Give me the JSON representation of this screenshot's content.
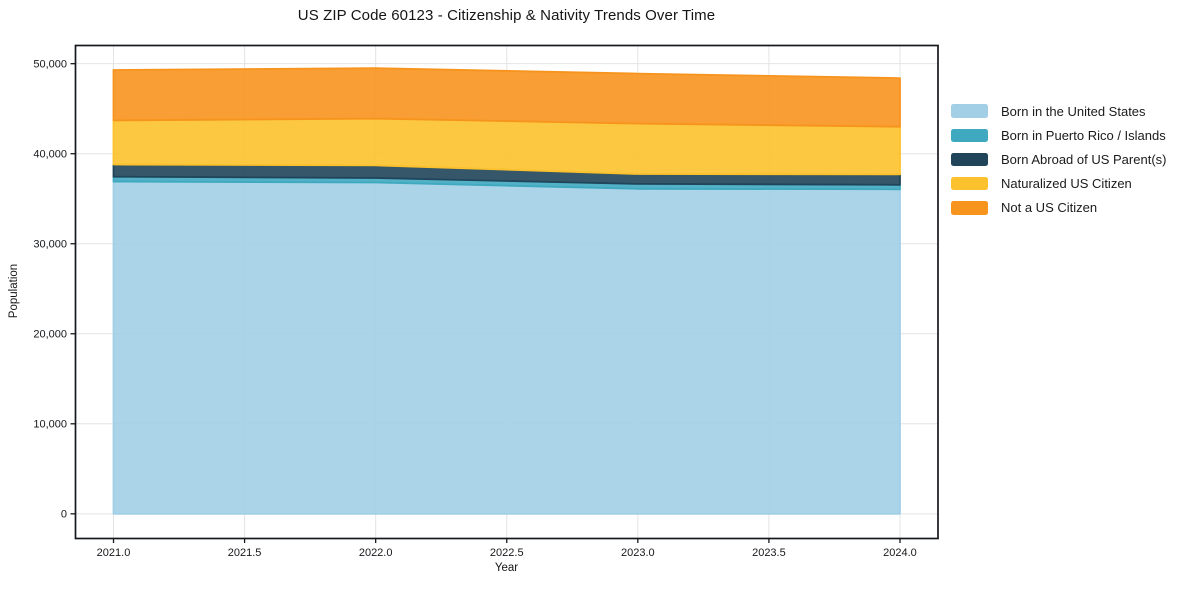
{
  "title": "US ZIP Code 60123 - Citizenship & Nativity Trends Over Time",
  "chart_data": {
    "type": "area",
    "stacked": true,
    "title": "US ZIP Code 60123 - Citizenship & Nativity Trends Over Time",
    "xlabel": "Year",
    "ylabel": "Population",
    "x": [
      2021,
      2022,
      2023,
      2024
    ],
    "series": [
      {
        "name": "Born in the United States",
        "color": "#a2cfe5",
        "values": [
          36900,
          36800,
          36100,
          36050
        ]
      },
      {
        "name": "Born in Puerto Rico / Islands",
        "color": "#3fa9c0",
        "values": [
          550,
          500,
          550,
          500
        ]
      },
      {
        "name": "Born Abroad of US Parent(s)",
        "color": "#20455a",
        "values": [
          1350,
          1400,
          1100,
          1150
        ]
      },
      {
        "name": "Naturalized US Citizen",
        "color": "#fcc22d",
        "values": [
          4900,
          5200,
          5600,
          5300
        ]
      },
      {
        "name": "Not a US Citizen",
        "color": "#f7941e",
        "values": [
          5600,
          5600,
          5550,
          5400
        ]
      }
    ],
    "stack_totals": [
      49300,
      49500,
      48900,
      48400
    ],
    "xticks": [
      2021.0,
      2021.5,
      2022.0,
      2022.5,
      2023.0,
      2023.5,
      2024.0
    ],
    "xtick_labels": [
      "2021.0",
      "2021.5",
      "2022.0",
      "2022.5",
      "2023.0",
      "2023.5",
      "2024.0"
    ],
    "yticks": [
      0,
      10000,
      20000,
      30000,
      40000,
      50000
    ],
    "ytick_labels": [
      "0",
      "10,000",
      "20,000",
      "30,000",
      "40,000",
      "50,000"
    ],
    "xlim": [
      2020.855,
      2024.145
    ],
    "ylim": [
      -2740,
      52020
    ],
    "grid": true,
    "grid_color": "#e4e4e4",
    "axis_color": "#15181c",
    "fill_opacity": 0.9,
    "legend_position": "right-outside",
    "legend_entries": [
      "Born in the United States",
      "Born in Puerto Rico / Islands",
      "Born Abroad of US Parent(s)",
      "Naturalized US Citizen",
      "Not a US Citizen"
    ]
  }
}
